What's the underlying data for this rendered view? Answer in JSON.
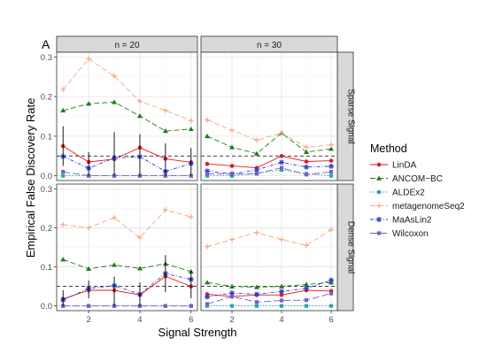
{
  "chart_data": {
    "type": "line",
    "panel_letter": "A",
    "xlabel": "Signal Strength",
    "ylabel": "Empirical False Discovery Rate",
    "x": [
      1,
      2,
      3,
      4,
      5,
      6
    ],
    "xticks": [
      2,
      4,
      6
    ],
    "xlim": [
      0.75,
      6.25
    ],
    "ylim": [
      -0.012,
      0.312
    ],
    "yticks": [
      0.0,
      0.1,
      0.2,
      0.3
    ],
    "ytick_labels": [
      "0.0",
      "0.1",
      "0.2",
      "0.3"
    ],
    "grid": true,
    "reference_line": 0.05,
    "column_strips": [
      "n = 20",
      "n = 30"
    ],
    "row_strips": [
      "Sparse Signal",
      "Dense Signal"
    ],
    "legend": {
      "title": "Method",
      "position": "right",
      "entries": [
        "LinDA",
        "ANCOM−BC",
        "ALDEx2",
        "metagenomeSeq2",
        "MaAsLin2",
        "Wilcoxon"
      ]
    },
    "series_styles": [
      {
        "name": "LinDA",
        "color": "#e41a1c",
        "dash": "",
        "marker": "circle"
      },
      {
        "name": "ANCOM−BC",
        "color": "#1f7a1f",
        "dash": "6,3",
        "marker": "triangle"
      },
      {
        "name": "ALDEx2",
        "color": "#26a6b8",
        "dash": "1.5,2",
        "marker": "square"
      },
      {
        "name": "metagenomeSeq2",
        "color": "#f7a882",
        "dash": "6,3",
        "marker": "plus"
      },
      {
        "name": "MaAsLin2",
        "color": "#2b3fd6",
        "dash": "4,2,1,2",
        "marker": "star"
      },
      {
        "name": "Wilcoxon",
        "color": "#7b5cc4",
        "dash": "8,3",
        "marker": "square"
      }
    ],
    "panels": [
      {
        "row": 0,
        "col": 0,
        "series": [
          {
            "name": "LinDA",
            "values": [
              0.075,
              0.035,
              0.042,
              0.071,
              0.043,
              0.034
            ]
          },
          {
            "name": "ANCOM−BC",
            "values": [
              0.165,
              0.182,
              0.186,
              0.151,
              0.113,
              0.118
            ]
          },
          {
            "name": "ALDEx2",
            "values": [
              0.0,
              0.0,
              0.0,
              0.0,
              0.0,
              0.0
            ]
          },
          {
            "name": "metagenomeSeq2",
            "values": [
              0.218,
              0.295,
              0.252,
              0.188,
              0.165,
              0.139
            ]
          },
          {
            "name": "MaAsLin2",
            "values": [
              0.049,
              0.019,
              0.045,
              0.048,
              0.011,
              0.031
            ]
          },
          {
            "name": "Wilcoxon",
            "values": [
              0.01,
              0.0,
              0.0,
              0.0,
              0.0,
              0.0
            ]
          }
        ],
        "error_bars": [
          {
            "x": 1,
            "low": 0.025,
            "high": 0.125
          },
          {
            "x": 2,
            "low": 0.0,
            "high": 0.06
          },
          {
            "x": 3,
            "low": 0.0,
            "high": 0.11
          },
          {
            "x": 4,
            "low": 0.0,
            "high": 0.105
          },
          {
            "x": 5,
            "low": 0.0,
            "high": 0.082
          },
          {
            "x": 6,
            "low": 0.0,
            "high": 0.07
          }
        ]
      },
      {
        "row": 0,
        "col": 1,
        "series": [
          {
            "name": "LinDA",
            "values": [
              0.03,
              0.025,
              0.02,
              0.05,
              0.036,
              0.038
            ]
          },
          {
            "name": "ANCOM−BC",
            "values": [
              0.1,
              0.072,
              0.056,
              0.108,
              0.06,
              0.068
            ]
          },
          {
            "name": "ALDEx2",
            "values": [
              0.0,
              0.0,
              0.005,
              0.015,
              0.005,
              0.0
            ]
          },
          {
            "name": "metagenomeSeq2",
            "values": [
              0.141,
              0.115,
              0.09,
              0.108,
              0.072,
              0.078
            ]
          },
          {
            "name": "MaAsLin2",
            "values": [
              0.012,
              0.005,
              0.015,
              0.034,
              0.022,
              0.024
            ]
          },
          {
            "name": "Wilcoxon",
            "values": [
              0.005,
              0.004,
              0.006,
              0.02,
              0.003,
              0.01
            ]
          }
        ],
        "error_bars": []
      },
      {
        "row": 1,
        "col": 0,
        "series": [
          {
            "name": "LinDA",
            "values": [
              0.018,
              0.04,
              0.04,
              0.028,
              0.076,
              0.05
            ]
          },
          {
            "name": "ANCOM−BC",
            "values": [
              0.119,
              0.095,
              0.105,
              0.096,
              0.108,
              0.088
            ]
          },
          {
            "name": "ALDEx2",
            "values": [
              0.0,
              0.0,
              0.0,
              0.0,
              0.0,
              0.0
            ]
          },
          {
            "name": "metagenomeSeq2",
            "values": [
              0.208,
              0.2,
              0.226,
              0.175,
              0.246,
              0.228
            ]
          },
          {
            "name": "MaAsLin2",
            "values": [
              0.015,
              0.045,
              0.052,
              0.03,
              0.083,
              0.068
            ]
          },
          {
            "name": "Wilcoxon",
            "values": [
              0.0,
              0.0,
              0.0,
              0.0,
              0.0,
              0.0
            ]
          }
        ],
        "error_bars": [
          {
            "x": 1,
            "low": 0.0,
            "high": 0.04
          },
          {
            "x": 2,
            "low": 0.02,
            "high": 0.065
          },
          {
            "x": 3,
            "low": 0.0,
            "high": 0.075
          },
          {
            "x": 4,
            "low": 0.0,
            "high": 0.06
          },
          {
            "x": 5,
            "low": 0.035,
            "high": 0.13
          },
          {
            "x": 6,
            "low": 0.02,
            "high": 0.09
          }
        ]
      },
      {
        "row": 1,
        "col": 1,
        "series": [
          {
            "name": "LinDA",
            "values": [
              0.03,
              0.024,
              0.028,
              0.028,
              0.04,
              0.038
            ]
          },
          {
            "name": "ANCOM−BC",
            "values": [
              0.06,
              0.05,
              0.048,
              0.05,
              0.055,
              0.06
            ]
          },
          {
            "name": "ALDEx2",
            "values": [
              0.0,
              0.0,
              0.0,
              0.0,
              0.0,
              0.0
            ]
          },
          {
            "name": "metagenomeSeq2",
            "values": [
              0.152,
              0.17,
              0.188,
              0.17,
              0.155,
              0.195
            ]
          },
          {
            "name": "MaAsLin2",
            "values": [
              0.023,
              0.033,
              0.03,
              0.037,
              0.045,
              0.066
            ]
          },
          {
            "name": "Wilcoxon",
            "values": [
              0.005,
              0.024,
              0.01,
              0.014,
              0.015,
              0.032
            ]
          }
        ],
        "error_bars": []
      }
    ]
  }
}
